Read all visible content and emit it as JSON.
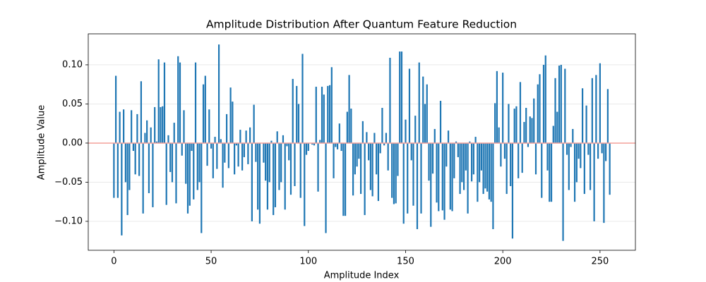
{
  "chart_data": {
    "type": "bar",
    "title": "Amplitude Distribution After Quantum Feature Reduction",
    "xlabel": "Amplitude Index",
    "ylabel": "Amplitude Value",
    "color": "#1f77b4",
    "hline": {
      "value": 0,
      "color": "#f4a09a"
    },
    "grid": true,
    "xlim": [
      -13.2,
      268.2
    ],
    "ylim": [
      -0.137,
      0.1396
    ],
    "xticks": [
      0,
      50,
      100,
      150,
      200,
      250
    ],
    "yticks": [
      {
        "value": -0.1,
        "label": "−0.10"
      },
      {
        "value": -0.05,
        "label": "−0.05"
      },
      {
        "value": 0,
        "label": "0.00"
      },
      {
        "value": 0.05,
        "label": "0.05"
      },
      {
        "value": 0.1,
        "label": "0.10"
      }
    ],
    "x": [
      0,
      1,
      2,
      3,
      4,
      5,
      6,
      7,
      8,
      9,
      10,
      11,
      12,
      13,
      14,
      15,
      16,
      17,
      18,
      19,
      20,
      21,
      22,
      23,
      24,
      25,
      26,
      27,
      28,
      29,
      30,
      31,
      32,
      33,
      34,
      35,
      36,
      37,
      38,
      39,
      40,
      41,
      42,
      43,
      44,
      45,
      46,
      47,
      48,
      49,
      50,
      51,
      52,
      53,
      54,
      55,
      56,
      57,
      58,
      59,
      60,
      61,
      62,
      63,
      64,
      65,
      66,
      67,
      68,
      69,
      70,
      71,
      72,
      73,
      74,
      75,
      76,
      77,
      78,
      79,
      80,
      81,
      82,
      83,
      84,
      85,
      86,
      87,
      88,
      89,
      90,
      91,
      92,
      93,
      94,
      95,
      96,
      97,
      98,
      99,
      100,
      101,
      102,
      103,
      104,
      105,
      106,
      107,
      108,
      109,
      110,
      111,
      112,
      113,
      114,
      115,
      116,
      117,
      118,
      119,
      120,
      121,
      122,
      123,
      124,
      125,
      126,
      127,
      128,
      129,
      130,
      131,
      132,
      133,
      134,
      135,
      136,
      137,
      138,
      139,
      140,
      141,
      142,
      143,
      144,
      145,
      146,
      147,
      148,
      149,
      150,
      151,
      152,
      153,
      154,
      155,
      156,
      157,
      158,
      159,
      160,
      161,
      162,
      163,
      164,
      165,
      166,
      167,
      168,
      169,
      170,
      171,
      172,
      173,
      174,
      175,
      176,
      177,
      178,
      179,
      180,
      181,
      182,
      183,
      184,
      185,
      186,
      187,
      188,
      189,
      190,
      191,
      192,
      193,
      194,
      195,
      196,
      197,
      198,
      199,
      200,
      201,
      202,
      203,
      204,
      205,
      206,
      207,
      208,
      209,
      210,
      211,
      212,
      213,
      214,
      215,
      216,
      217,
      218,
      219,
      220,
      221,
      222,
      223,
      224,
      225,
      226,
      227,
      228,
      229,
      230,
      231,
      232,
      233,
      234,
      235,
      236,
      237,
      238,
      239,
      240,
      241,
      242,
      243,
      244,
      245,
      246,
      247,
      248,
      249,
      250,
      251,
      252,
      253,
      254,
      255
    ],
    "values": [
      -0.07,
      0.086,
      -0.07,
      0.04,
      -0.118,
      0.043,
      -0.05,
      -0.092,
      -0.06,
      0.042,
      -0.01,
      -0.04,
      0.037,
      -0.042,
      0.079,
      -0.09,
      0.013,
      0.029,
      -0.064,
      0.02,
      -0.082,
      0.046,
      0.002,
      0.107,
      0.046,
      0.047,
      0.103,
      -0.079,
      0.01,
      -0.037,
      -0.05,
      0.026,
      -0.077,
      0.111,
      0.103,
      -0.016,
      0.042,
      -0.052,
      -0.09,
      -0.08,
      -0.01,
      -0.072,
      0.103,
      -0.06,
      -0.05,
      -0.115,
      0.075,
      0.086,
      -0.029,
      0.043,
      -0.007,
      -0.045,
      0.008,
      -0.033,
      0.126,
      0.005,
      -0.057,
      -0.025,
      0.037,
      -0.032,
      0.071,
      0.053,
      -0.04,
      -0.003,
      -0.03,
      0.017,
      -0.035,
      -0.018,
      0.016,
      -0.027,
      0.02,
      -0.1,
      0.049,
      -0.024,
      -0.085,
      -0.103,
      0,
      -0.025,
      -0.048,
      -0.085,
      -0.05,
      0.003,
      -0.092,
      -0.082,
      0.015,
      -0.06,
      -0.05,
      0.01,
      -0.085,
      -0.004,
      -0.022,
      -0.066,
      0.082,
      -0.055,
      0.073,
      0.05,
      -0.07,
      0.114,
      -0.106,
      -0.015,
      -0.01,
      0,
      -0.002,
      -0.003,
      0.072,
      -0.062,
      0.004,
      0.072,
      0.062,
      -0.115,
      0.073,
      0.074,
      0.097,
      -0.045,
      -0.005,
      -0.008,
      0.025,
      -0.01,
      -0.093,
      -0.093,
      0.04,
      0.087,
      0.044,
      -0.067,
      -0.04,
      -0.03,
      -0.02,
      -0.065,
      0.028,
      -0.092,
      0.014,
      -0.022,
      -0.06,
      -0.068,
      0.013,
      -0.04,
      -0.074,
      -0.013,
      0.045,
      -0.003,
      0.013,
      -0.035,
      0.109,
      -0.07,
      -0.078,
      -0.077,
      -0.042,
      0.117,
      0.117,
      -0.103,
      0.03,
      -0.09,
      0.095,
      -0.022,
      -0.08,
      0.035,
      -0.11,
      0.103,
      -0.09,
      0.085,
      0.05,
      0.075,
      -0.048,
      -0.107,
      -0.039,
      0.018,
      -0.076,
      -0.087,
      0.054,
      -0.086,
      -0.098,
      -0.03,
      0.016,
      -0.085,
      -0.087,
      -0.045,
      0.002,
      -0.018,
      -0.065,
      -0.05,
      -0.06,
      -0.035,
      -0.09,
      0.002,
      -0.049,
      -0.04,
      0.008,
      -0.075,
      -0.05,
      -0.035,
      -0.065,
      -0.058,
      -0.062,
      -0.072,
      -0.075,
      -0.11,
      0.051,
      0.092,
      0.02,
      -0.03,
      0.09,
      -0.02,
      -0.065,
      0.05,
      -0.055,
      -0.122,
      0.044,
      0.047,
      -0.045,
      0.078,
      -0.038,
      0.027,
      0.045,
      -0.005,
      0.034,
      0.032,
      0.057,
      -0.04,
      0.075,
      0.088,
      -0.07,
      0.1,
      0.112,
      -0.035,
      -0.075,
      -0.075,
      0.022,
      0.083,
      0.04,
      0.099,
      0.1,
      -0.125,
      0.095,
      -0.015,
      -0.06,
      -0.005,
      0.018,
      -0.075,
      -0.05,
      -0.02,
      -0.032,
      0.07,
      -0.065,
      0.048,
      -0.015,
      -0.06,
      0.083,
      -0.1,
      0.087,
      -0.02,
      0.102,
      -0.013,
      -0.102,
      -0.023,
      0.069,
      -0.066
    ]
  }
}
